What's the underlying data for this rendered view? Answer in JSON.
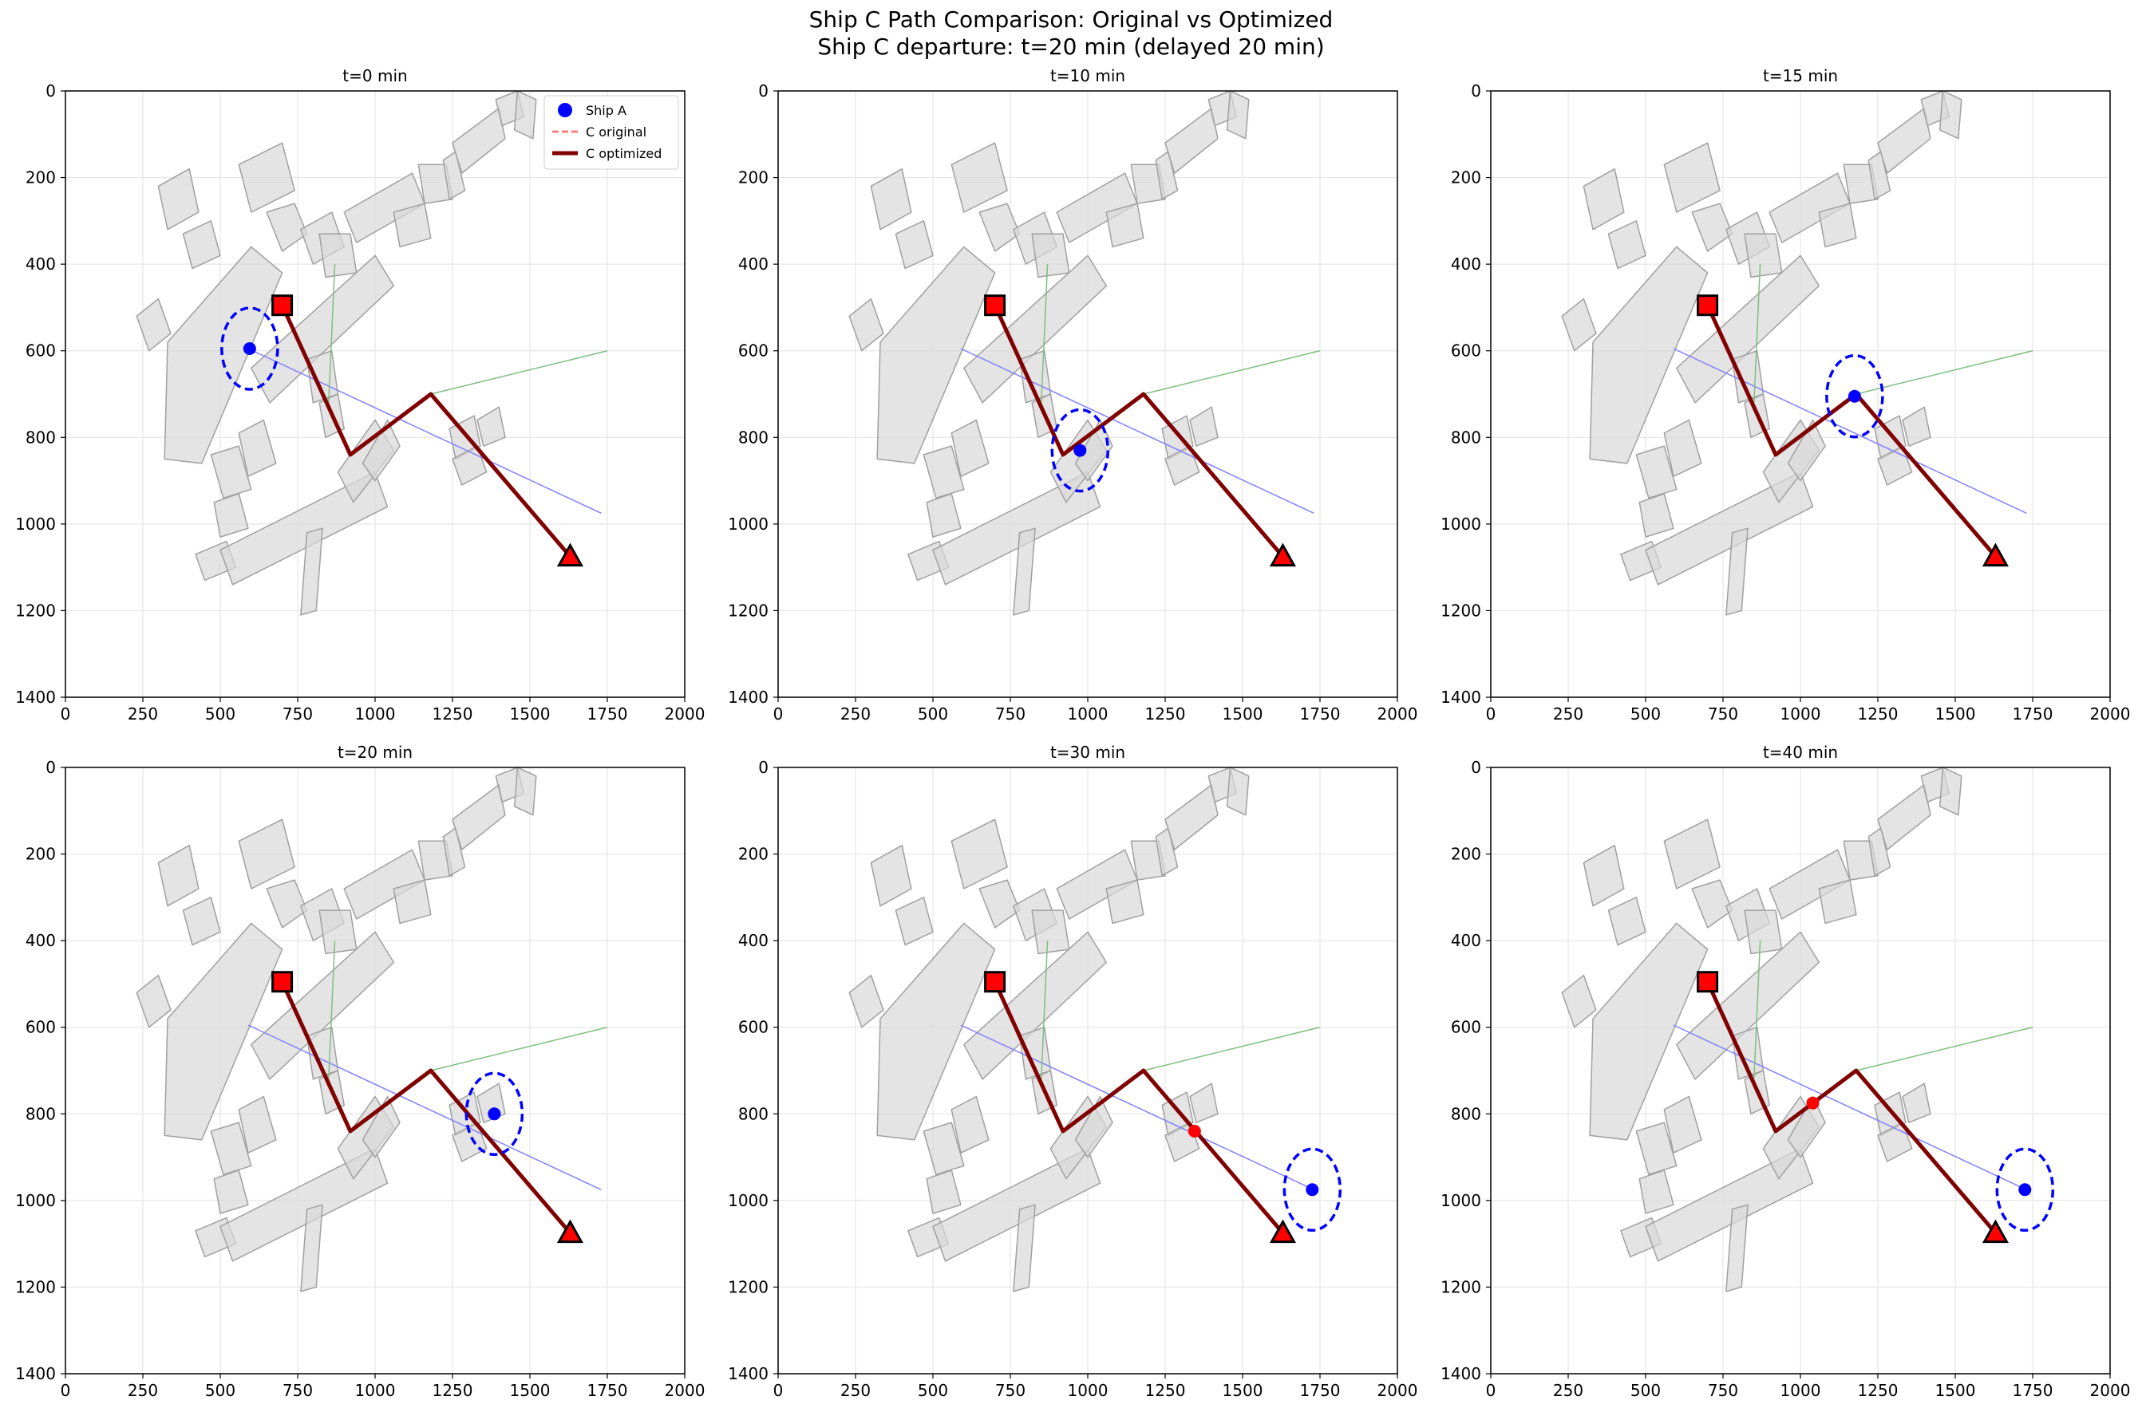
{
  "figure": {
    "title_line1": "Ship C Path Comparison: Original vs Optimized",
    "title_line2": "Ship C departure: t=20 min (delayed 20 min)"
  },
  "colors": {
    "ship_a": "#0000ff",
    "ship_c": "#ff0000",
    "c_original": "#ff7f7f",
    "c_optimized": "#800000",
    "start_marker": "#ff0000",
    "goal_marker": "#ff0000",
    "obstacle_fill": "#d9d9d9",
    "obstacle_stroke": "#a0a0a0",
    "ship_a_route": "#8080ff",
    "other_route": "#7fbf7f",
    "grid": "#e6e6e6"
  },
  "chart_data": {
    "type": "scatter",
    "xlim": [
      0,
      2000
    ],
    "ylim": [
      1400,
      0
    ],
    "x_ticks": [
      0,
      250,
      500,
      750,
      1000,
      1250,
      1500,
      1750,
      2000
    ],
    "y_ticks": [
      0,
      200,
      400,
      600,
      800,
      1000,
      1200,
      1400
    ],
    "grid": true,
    "legend": {
      "placement": "top-right",
      "entries": [
        {
          "label": "Ship A",
          "style": "marker"
        },
        {
          "label": "C original",
          "style": "dashed"
        },
        {
          "label": "C optimized",
          "style": "solid"
        }
      ]
    },
    "start": {
      "x": 700,
      "y": 495
    },
    "goal": {
      "x": 1630,
      "y": 1075
    },
    "c_optimized_path": [
      [
        700,
        495
      ],
      [
        920,
        840
      ],
      [
        1180,
        700
      ],
      [
        1630,
        1075
      ]
    ],
    "ship_a_route": [
      [
        590,
        595
      ],
      [
        1730,
        975
      ]
    ],
    "other_routes": [
      [
        [
          870,
          400
        ],
        [
          850,
          720
        ]
      ],
      [
        [
          1180,
          700
        ],
        [
          1750,
          600
        ]
      ]
    ],
    "obstacles": [
      [
        [
          330,
          580
        ],
        [
          600,
          360
        ],
        [
          700,
          420
        ],
        [
          440,
          860
        ],
        [
          320,
          850
        ]
      ],
      [
        [
          230,
          520
        ],
        [
          300,
          480
        ],
        [
          340,
          560
        ],
        [
          270,
          600
        ]
      ],
      [
        [
          380,
          330
        ],
        [
          470,
          300
        ],
        [
          500,
          380
        ],
        [
          410,
          410
        ]
      ],
      [
        [
          300,
          220
        ],
        [
          400,
          180
        ],
        [
          430,
          280
        ],
        [
          330,
          320
        ]
      ],
      [
        [
          560,
          170
        ],
        [
          700,
          120
        ],
        [
          740,
          230
        ],
        [
          600,
          280
        ]
      ],
      [
        [
          650,
          280
        ],
        [
          740,
          260
        ],
        [
          780,
          330
        ],
        [
          700,
          370
        ]
      ],
      [
        [
          760,
          320
        ],
        [
          860,
          280
        ],
        [
          900,
          360
        ],
        [
          800,
          400
        ]
      ],
      [
        [
          600,
          640
        ],
        [
          1000,
          380
        ],
        [
          1060,
          450
        ],
        [
          660,
          720
        ]
      ],
      [
        [
          820,
          330
        ],
        [
          920,
          330
        ],
        [
          940,
          420
        ],
        [
          840,
          430
        ]
      ],
      [
        [
          900,
          280
        ],
        [
          1120,
          190
        ],
        [
          1160,
          260
        ],
        [
          940,
          350
        ]
      ],
      [
        [
          1060,
          280
        ],
        [
          1160,
          260
        ],
        [
          1180,
          340
        ],
        [
          1080,
          360
        ]
      ],
      [
        [
          1140,
          170
        ],
        [
          1230,
          170
        ],
        [
          1250,
          250
        ],
        [
          1160,
          260
        ]
      ],
      [
        [
          1220,
          160
        ],
        [
          1260,
          140
        ],
        [
          1290,
          230
        ],
        [
          1240,
          250
        ]
      ],
      [
        [
          1250,
          120
        ],
        [
          1400,
          40
        ],
        [
          1420,
          110
        ],
        [
          1280,
          190
        ]
      ],
      [
        [
          1390,
          20
        ],
        [
          1460,
          0
        ],
        [
          1480,
          60
        ],
        [
          1410,
          80
        ]
      ],
      [
        [
          1460,
          0
        ],
        [
          1520,
          20
        ],
        [
          1510,
          110
        ],
        [
          1450,
          90
        ]
      ],
      [
        [
          560,
          790
        ],
        [
          640,
          760
        ],
        [
          680,
          860
        ],
        [
          590,
          890
        ]
      ],
      [
        [
          470,
          840
        ],
        [
          560,
          820
        ],
        [
          600,
          920
        ],
        [
          510,
          940
        ]
      ],
      [
        [
          480,
          950
        ],
        [
          560,
          930
        ],
        [
          590,
          1010
        ],
        [
          500,
          1030
        ]
      ],
      [
        [
          420,
          1070
        ],
        [
          520,
          1040
        ],
        [
          550,
          1100
        ],
        [
          450,
          1130
        ]
      ],
      [
        [
          500,
          1060
        ],
        [
          1000,
          880
        ],
        [
          1040,
          960
        ],
        [
          540,
          1140
        ]
      ],
      [
        [
          780,
          1020
        ],
        [
          830,
          1010
        ],
        [
          810,
          1200
        ],
        [
          760,
          1210
        ]
      ],
      [
        [
          880,
          880
        ],
        [
          1000,
          760
        ],
        [
          1060,
          830
        ],
        [
          930,
          950
        ]
      ],
      [
        [
          960,
          860
        ],
        [
          1040,
          760
        ],
        [
          1080,
          820
        ],
        [
          1000,
          900
        ]
      ],
      [
        [
          780,
          620
        ],
        [
          860,
          600
        ],
        [
          880,
          700
        ],
        [
          800,
          720
        ]
      ],
      [
        [
          820,
          720
        ],
        [
          880,
          700
        ],
        [
          900,
          780
        ],
        [
          840,
          800
        ]
      ],
      [
        [
          1330,
          760
        ],
        [
          1400,
          730
        ],
        [
          1420,
          800
        ],
        [
          1350,
          820
        ]
      ],
      [
        [
          1240,
          780
        ],
        [
          1320,
          750
        ],
        [
          1340,
          820
        ],
        [
          1260,
          850
        ]
      ],
      [
        [
          1250,
          850
        ],
        [
          1330,
          820
        ],
        [
          1360,
          880
        ],
        [
          1280,
          910
        ]
      ]
    ],
    "panels": [
      {
        "title": "t=0 min",
        "ship_a": {
          "x": 595,
          "y": 595
        },
        "ship_c": null,
        "show_legend": true
      },
      {
        "title": "t=10 min",
        "ship_a": {
          "x": 975,
          "y": 830
        },
        "ship_c": null,
        "show_legend": false
      },
      {
        "title": "t=15 min",
        "ship_a": {
          "x": 1175,
          "y": 705
        },
        "ship_c": null,
        "show_legend": false
      },
      {
        "title": "t=20 min",
        "ship_a": {
          "x": 1385,
          "y": 800
        },
        "ship_c": null,
        "show_legend": false
      },
      {
        "title": "t=30 min",
        "ship_a": {
          "x": 1725,
          "y": 975
        },
        "ship_c": {
          "x": 1345,
          "y": 840
        },
        "show_legend": false
      },
      {
        "title": "t=40 min",
        "ship_a": {
          "x": 1725,
          "y": 975
        },
        "ship_c": {
          "x": 1040,
          "y": 775
        },
        "show_legend": false
      }
    ]
  }
}
